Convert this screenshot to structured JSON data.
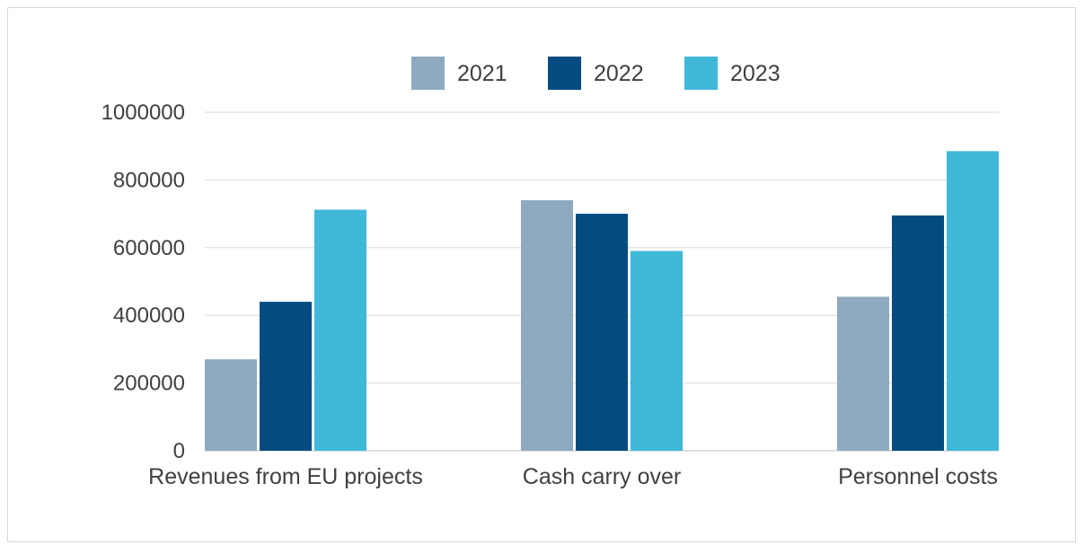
{
  "chart_data": {
    "type": "bar",
    "title": "",
    "xlabel": "",
    "ylabel": "",
    "categories": [
      "Revenues from EU projects",
      "Cash carry over",
      "Personnel costs"
    ],
    "series": [
      {
        "name": "2021",
        "color": "#8faabf",
        "values": [
          270000,
          740000,
          455000
        ]
      },
      {
        "name": "2022",
        "color": "#034b80",
        "values": [
          440000,
          700000,
          695000
        ]
      },
      {
        "name": "2023",
        "color": "#3fb8d9",
        "values": [
          712000,
          590000,
          885000
        ]
      }
    ],
    "ylim": [
      0,
      1000000
    ],
    "yticks": [
      "0",
      "200000",
      "400000",
      "600000",
      "800000",
      "1000000"
    ],
    "grid": true,
    "legend_position": "top"
  }
}
